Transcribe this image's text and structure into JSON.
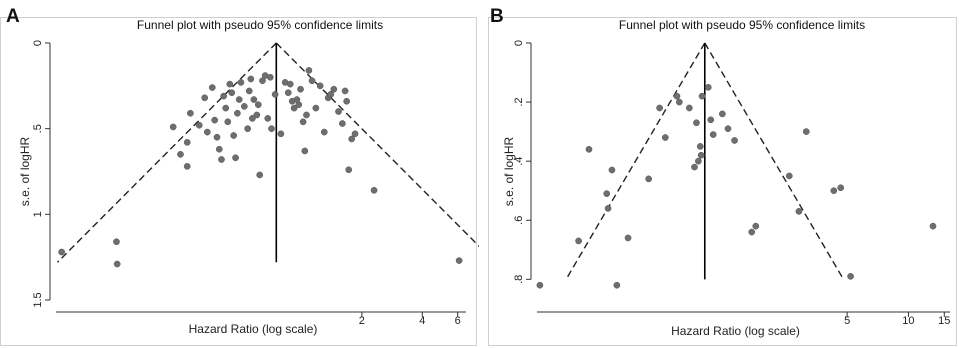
{
  "chart_data": [
    {
      "id": "A",
      "panel_label": "A",
      "type": "scatter",
      "title": "Funnel plot with pseudo 95% confidence limits",
      "xlabel": "Hazard Ratio (log scale)",
      "ylabel": "s.e. of logHR",
      "x_scale": "log",
      "y_inverted": true,
      "xlim": [
        0.06,
        6.6
      ],
      "ylim": [
        0,
        1.5
      ],
      "xticks": [
        2,
        4,
        6
      ],
      "yticks": [
        0,
        0.5,
        1,
        1.5
      ],
      "ytick_labels": [
        "0",
        ".5",
        "1",
        "1.5"
      ],
      "pooled_hr": 0.75,
      "ci_max_se": 1.28,
      "grid": false,
      "points": [
        [
          0.064,
          1.22
        ],
        [
          0.12,
          1.16
        ],
        [
          0.121,
          1.29
        ],
        [
          0.23,
          0.49
        ],
        [
          0.25,
          0.65
        ],
        [
          0.27,
          0.72
        ],
        [
          0.27,
          0.58
        ],
        [
          0.28,
          0.41
        ],
        [
          0.31,
          0.48
        ],
        [
          0.33,
          0.32
        ],
        [
          0.34,
          0.52
        ],
        [
          0.36,
          0.26
        ],
        [
          0.37,
          0.45
        ],
        [
          0.38,
          0.55
        ],
        [
          0.39,
          0.62
        ],
        [
          0.4,
          0.68
        ],
        [
          0.41,
          0.31
        ],
        [
          0.42,
          0.38
        ],
        [
          0.43,
          0.46
        ],
        [
          0.44,
          0.24
        ],
        [
          0.45,
          0.29
        ],
        [
          0.46,
          0.54
        ],
        [
          0.47,
          0.67
        ],
        [
          0.48,
          0.41
        ],
        [
          0.49,
          0.33
        ],
        [
          0.5,
          0.23
        ],
        [
          0.52,
          0.37
        ],
        [
          0.54,
          0.5
        ],
        [
          0.55,
          0.28
        ],
        [
          0.56,
          0.21
        ],
        [
          0.57,
          0.44
        ],
        [
          0.58,
          0.33
        ],
        [
          0.6,
          0.42
        ],
        [
          0.61,
          0.36
        ],
        [
          0.62,
          0.77
        ],
        [
          0.64,
          0.22
        ],
        [
          0.66,
          0.19
        ],
        [
          0.68,
          0.44
        ],
        [
          0.7,
          0.2
        ],
        [
          0.71,
          0.5
        ],
        [
          0.74,
          0.3
        ],
        [
          0.79,
          0.53
        ],
        [
          0.83,
          0.23
        ],
        [
          0.86,
          0.29
        ],
        [
          0.88,
          0.24
        ],
        [
          0.9,
          0.34
        ],
        [
          0.92,
          0.38
        ],
        [
          0.95,
          0.33
        ],
        [
          0.97,
          0.36
        ],
        [
          0.99,
          0.27
        ],
        [
          1.02,
          0.46
        ],
        [
          1.04,
          0.63
        ],
        [
          1.06,
          0.42
        ],
        [
          1.09,
          0.16
        ],
        [
          1.13,
          0.22
        ],
        [
          1.18,
          0.38
        ],
        [
          1.24,
          0.25
        ],
        [
          1.3,
          0.52
        ],
        [
          1.36,
          0.32
        ],
        [
          1.4,
          0.3
        ],
        [
          1.45,
          0.27
        ],
        [
          1.53,
          0.4
        ],
        [
          1.6,
          0.47
        ],
        [
          1.65,
          0.28
        ],
        [
          1.68,
          0.34
        ],
        [
          1.72,
          0.74
        ],
        [
          1.78,
          0.56
        ],
        [
          1.85,
          0.53
        ],
        [
          2.3,
          0.86
        ],
        [
          6.1,
          1.27
        ]
      ]
    },
    {
      "id": "B",
      "panel_label": "B",
      "type": "scatter",
      "title": "Funnel plot with pseudo 95% confidence limits",
      "xlabel": "Hazard Ratio (log scale)",
      "ylabel": "s.e. of logHR",
      "x_scale": "log",
      "y_inverted": true,
      "xlim": [
        0.15,
        16
      ],
      "ylim": [
        0,
        0.87
      ],
      "xticks": [
        5,
        10,
        15
      ],
      "yticks": [
        0,
        0.2,
        0.4,
        0.6,
        0.8
      ],
      "ytick_labels": [
        "0",
        ".2",
        ".4",
        ".6",
        ".8"
      ],
      "pooled_hr": 1.0,
      "ci_max_se": 0.8,
      "grid": false,
      "points": [
        [
          0.155,
          0.82
        ],
        [
          0.24,
          0.67
        ],
        [
          0.27,
          0.36
        ],
        [
          0.33,
          0.51
        ],
        [
          0.335,
          0.56
        ],
        [
          0.35,
          0.43
        ],
        [
          0.37,
          0.82
        ],
        [
          0.42,
          0.66
        ],
        [
          0.53,
          0.46
        ],
        [
          0.6,
          0.22
        ],
        [
          0.64,
          0.32
        ],
        [
          0.73,
          0.18
        ],
        [
          0.75,
          0.2
        ],
        [
          0.84,
          0.22
        ],
        [
          0.89,
          0.42
        ],
        [
          0.91,
          0.27
        ],
        [
          0.93,
          0.4
        ],
        [
          0.95,
          0.35
        ],
        [
          0.96,
          0.38
        ],
        [
          0.97,
          0.18
        ],
        [
          1.04,
          0.15
        ],
        [
          1.07,
          0.26
        ],
        [
          1.1,
          0.31
        ],
        [
          1.22,
          0.24
        ],
        [
          1.3,
          0.29
        ],
        [
          1.4,
          0.33
        ],
        [
          1.7,
          0.64
        ],
        [
          1.78,
          0.62
        ],
        [
          2.6,
          0.45
        ],
        [
          2.9,
          0.57
        ],
        [
          3.15,
          0.3
        ],
        [
          4.3,
          0.5
        ],
        [
          4.65,
          0.49
        ],
        [
          5.2,
          0.79
        ],
        [
          13.2,
          0.62
        ]
      ]
    }
  ]
}
